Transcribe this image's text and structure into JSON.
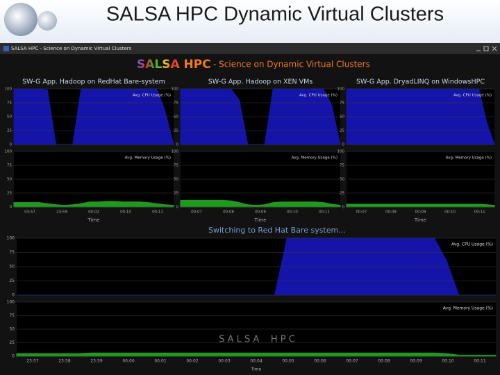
{
  "slide_title": "SALSA HPC  Dynamic Virtual Clusters",
  "window_title": "SALSA HPC - Science on Dynamic Virtual Clusters",
  "header": {
    "brand": "SALSA HPC",
    "tagline": "- Science on Dynamic Virtual Clusters"
  },
  "panels": [
    {
      "title": "SW-G App. Hadoop on RedHat Bare-system",
      "x_label": "Time",
      "charts": [
        {
          "type": "area",
          "legend": "Avg. CPU Usage (%)",
          "color": "#1414a8",
          "ylim": [
            0,
            100
          ],
          "yticks": [
            0,
            25,
            50,
            75,
            100
          ],
          "values": [
            100,
            100,
            100,
            100,
            98,
            0,
            0,
            0,
            100,
            100,
            100,
            100,
            100,
            100,
            100,
            100,
            100,
            100,
            60,
            0
          ]
        },
        {
          "type": "area",
          "legend": "Avg. Memory Usage (%)",
          "color": "#1f9a1f",
          "ylim": [
            0,
            100
          ],
          "yticks": [
            0,
            25,
            50,
            75,
            100
          ],
          "xticks": [
            "03:57",
            "23:59",
            "00:02",
            "00:10",
            "00:11"
          ],
          "values": [
            8,
            8,
            8,
            8,
            6,
            4,
            3,
            4,
            6,
            9,
            9,
            10,
            10,
            9,
            9,
            9,
            8,
            6,
            4,
            3
          ]
        }
      ]
    },
    {
      "title": "SW-G App. Hadoop on XEN VMs",
      "x_label": "Time",
      "charts": [
        {
          "type": "area",
          "legend": "Avg. CPU Usage (%)",
          "color": "#1414a8",
          "ylim": [
            0,
            100
          ],
          "yticks": [
            0,
            25,
            50,
            75,
            100
          ],
          "values": [
            100,
            100,
            100,
            100,
            100,
            100,
            100,
            80,
            0,
            0,
            0,
            100,
            100,
            100,
            100,
            100,
            100,
            100,
            70,
            0
          ]
        },
        {
          "type": "area",
          "legend": "Avg. Memory Usage (%)",
          "color": "#1f9a1f",
          "ylim": [
            0,
            100
          ],
          "yticks": [
            0,
            25,
            50,
            75,
            100
          ],
          "xticks": [
            "00:07",
            "00:08",
            "00:09",
            "00:10",
            "00:11"
          ],
          "values": [
            12,
            12,
            12,
            12,
            12,
            12,
            11,
            8,
            4,
            3,
            4,
            8,
            9,
            9,
            9,
            9,
            9,
            8,
            5,
            3
          ]
        }
      ]
    },
    {
      "title": "SW-G App. DryadLINQ on WindowsHPC",
      "x_label": "Time",
      "charts": [
        {
          "type": "area",
          "legend": "Avg. CPU Usage (%)",
          "color": "#1414a8",
          "ylim": [
            0,
            100
          ],
          "yticks": [
            0,
            25,
            50,
            75,
            100
          ],
          "values": [
            100,
            100,
            100,
            100,
            100,
            100,
            100,
            100,
            100,
            100,
            100,
            100,
            100,
            100,
            100,
            100,
            100,
            100,
            40,
            0
          ]
        },
        {
          "type": "area",
          "legend": "Avg. Memory Usage (%)",
          "color": "#1f9a1f",
          "ylim": [
            0,
            100
          ],
          "yticks": [
            0,
            25,
            50,
            75,
            100
          ],
          "xticks": [
            "00:07",
            "00:08",
            "00:09",
            "00:10",
            "00:11"
          ],
          "values": [
            5,
            5,
            5,
            5,
            5,
            5,
            5,
            5,
            5,
            5,
            5,
            5,
            5,
            5,
            5,
            5,
            5,
            5,
            4,
            3
          ]
        }
      ]
    }
  ],
  "status": "Switching to Red Hat Bare system...",
  "watermark": "S A L S A    H P C",
  "main": {
    "x_label": "Time",
    "charts": [
      {
        "type": "area",
        "legend": "Avg. CPU Usage (%)",
        "color": "#1414a8",
        "ylim": [
          0,
          100
        ],
        "yticks": [
          0,
          25,
          50,
          75,
          100
        ],
        "values": [
          0,
          0,
          0,
          0,
          0,
          0,
          0,
          0,
          0,
          0,
          0,
          0,
          0,
          0,
          0,
          0,
          0,
          0,
          0,
          0,
          0,
          0,
          100,
          100,
          100,
          100,
          100,
          100,
          100,
          100,
          100,
          100,
          100,
          100,
          100,
          60,
          0,
          0,
          0,
          0
        ]
      },
      {
        "type": "area",
        "legend": "Avg. Memory Usage (%)",
        "color": "#1f9a1f",
        "ylim": [
          0,
          100
        ],
        "yticks": [
          0,
          25,
          50,
          75,
          100
        ],
        "xticks": [
          "23:57",
          "23:58",
          "23:59",
          "00:00",
          "00:01",
          "00:02",
          "00:03",
          "00:04",
          "00:05",
          "00:06",
          "00:07",
          "00:08",
          "00:09",
          "00:10",
          "00:11"
        ],
        "values": [
          5,
          5,
          5,
          5,
          5,
          5,
          6,
          6,
          6,
          6,
          6,
          6,
          6,
          6,
          6,
          6,
          6,
          6,
          6,
          6,
          6,
          6,
          6,
          6,
          6,
          6,
          6,
          6,
          6,
          6,
          6,
          6,
          6,
          6,
          6,
          5,
          2,
          2,
          2,
          2
        ]
      }
    ]
  }
}
